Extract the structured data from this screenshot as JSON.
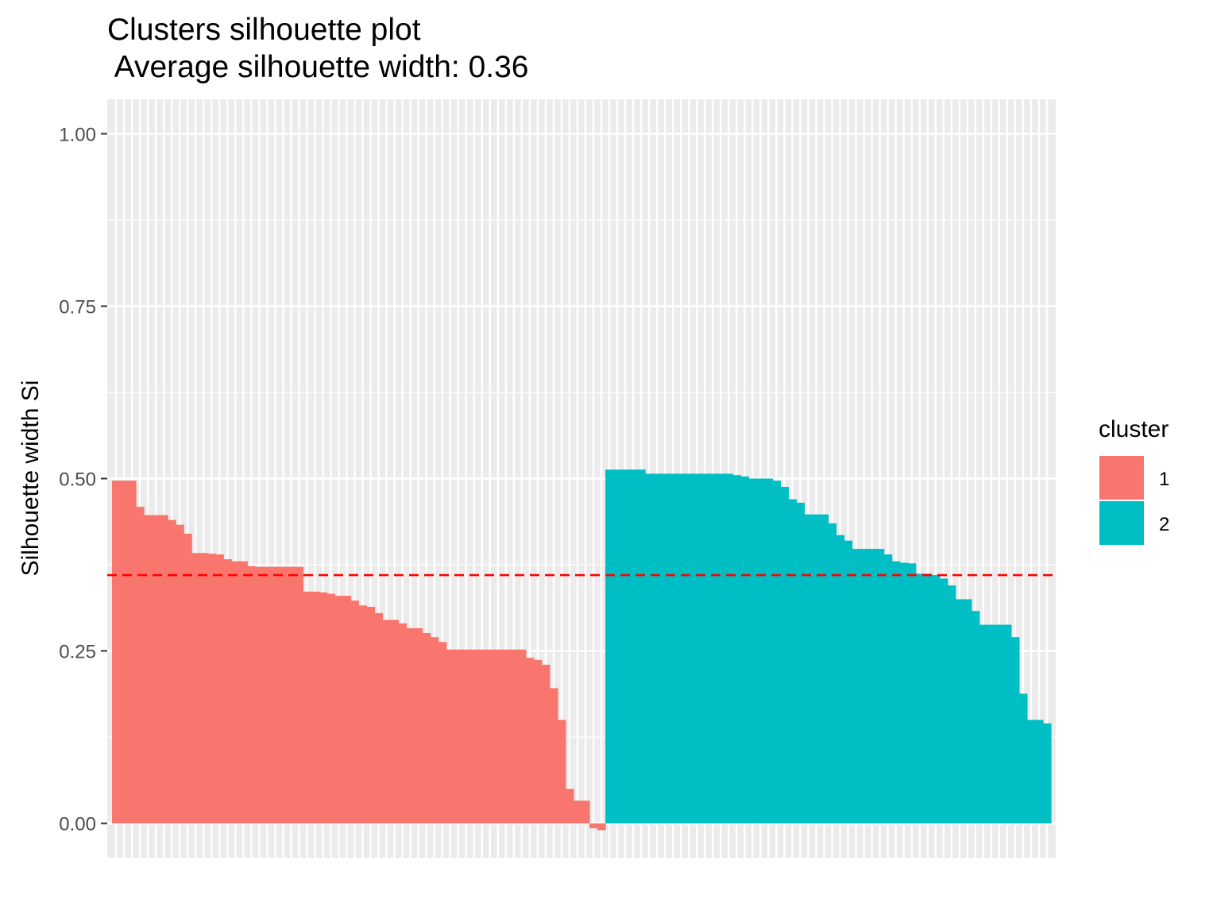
{
  "chart_data": {
    "type": "bar",
    "title": "Clusters silhouette plot",
    "subtitle": " Average silhouette width: 0.36",
    "xlabel": "",
    "ylabel": "Silhouette width Si",
    "ylim": [
      -0.05,
      1.05
    ],
    "y_ticks": [
      0,
      0.25,
      0.5,
      0.75,
      1
    ],
    "y_tick_labels": [
      "0.00",
      "0.25",
      "0.50",
      "0.75",
      "1.00"
    ],
    "grid": true,
    "average_silhouette_width": 0.36,
    "legend": {
      "title": "cluster",
      "position": "right"
    },
    "series": [
      {
        "name": "1",
        "color": "#F8766D",
        "values": [
          0.497,
          0.497,
          0.497,
          0.459,
          0.447,
          0.447,
          0.447,
          0.44,
          0.433,
          0.42,
          0.392,
          0.392,
          0.391,
          0.39,
          0.383,
          0.38,
          0.38,
          0.373,
          0.372,
          0.372,
          0.372,
          0.372,
          0.372,
          0.372,
          0.336,
          0.336,
          0.335,
          0.333,
          0.33,
          0.33,
          0.323,
          0.316,
          0.314,
          0.305,
          0.295,
          0.295,
          0.29,
          0.283,
          0.283,
          0.276,
          0.27,
          0.263,
          0.252,
          0.252,
          0.252,
          0.252,
          0.252,
          0.252,
          0.252,
          0.252,
          0.252,
          0.252,
          0.24,
          0.237,
          0.23,
          0.196,
          0.15,
          0.05,
          0.033,
          0.033,
          -0.007,
          -0.01
        ]
      },
      {
        "name": "2",
        "color": "#00BFC4",
        "values": [
          0.513,
          0.513,
          0.513,
          0.513,
          0.513,
          0.507,
          0.507,
          0.507,
          0.507,
          0.507,
          0.507,
          0.507,
          0.507,
          0.507,
          0.507,
          0.507,
          0.505,
          0.503,
          0.5,
          0.5,
          0.5,
          0.497,
          0.488,
          0.47,
          0.465,
          0.448,
          0.448,
          0.448,
          0.435,
          0.418,
          0.41,
          0.398,
          0.398,
          0.398,
          0.398,
          0.39,
          0.38,
          0.378,
          0.377,
          0.362,
          0.362,
          0.36,
          0.355,
          0.345,
          0.325,
          0.325,
          0.308,
          0.288,
          0.288,
          0.288,
          0.288,
          0.27,
          0.188,
          0.15,
          0.15,
          0.145
        ]
      }
    ]
  }
}
